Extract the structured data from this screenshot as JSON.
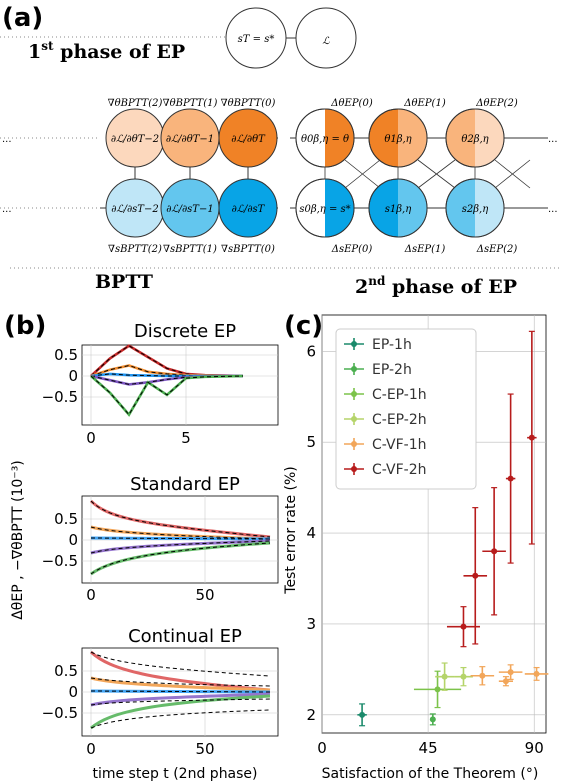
{
  "panel_a": {
    "label": "(a)",
    "first_phase": "1st phase of EP",
    "first_phase_sup": "st",
    "first_phase_num": "1",
    "first_phase_rest": " phase of EP",
    "top_nodes": [
      "sT = s*",
      "ℒ"
    ],
    "bptt_label": "BPTT",
    "second_phase_num": "2",
    "second_phase_sup": "nd",
    "second_phase_rest": " phase of EP",
    "grad_theta_bptt": [
      "∇θBPTT(2)",
      "∇θBPTT(1)",
      "∇θBPTT(0)"
    ],
    "grad_s_bptt": [
      "∇sBPTT(2)",
      "∇sBPTT(1)",
      "∇sBPTT(0)"
    ],
    "delta_theta_ep": [
      "ΔθEP(0)",
      "ΔθEP(1)",
      "ΔθEP(2)"
    ],
    "delta_s_ep": [
      "ΔsEP(0)",
      "ΔsEP(1)",
      "ΔsEP(2)"
    ],
    "theta_nodes": [
      "∂ℒ/∂θT−2",
      "∂ℒ/∂θT−1",
      "∂ℒ/∂θT"
    ],
    "s_nodes": [
      "∂ℒ/∂sT−2",
      "∂ℒ/∂sT−1",
      "∂ℒ/∂sT"
    ],
    "ep_theta_nodes": [
      "θ0β,η = θ",
      "θ1β,η",
      "θ2β,η"
    ],
    "ep_s_nodes": [
      "s0β,η = s*",
      "s1β,η",
      "s2β,η"
    ],
    "ellipsis": "..."
  },
  "panel_b": {
    "label": "(b)",
    "ylabel": "ΔθEP , −∇θBPTT (10⁻³)",
    "xlabel": "time step t (2nd phase)",
    "subplots": [
      {
        "title": "Discrete EP",
        "yticks": [
          "0.5",
          "0",
          "−0.5"
        ],
        "xticks": [
          "0",
          "5"
        ],
        "series": [
          {
            "color": "#c62828",
            "y": [
              0,
              0.42,
              0.72,
              0.45,
              0.18,
              0.05,
              0.02,
              0.01,
              0
            ]
          },
          {
            "color": "#ef8c2f",
            "y": [
              0,
              0.15,
              0.25,
              0.1,
              0.05,
              0.02,
              0.01,
              0,
              0
            ]
          },
          {
            "color": "#2196f3",
            "y": [
              0,
              0.05,
              0.02,
              0.01,
              0,
              0,
              0,
              0,
              0
            ]
          },
          {
            "color": "#7e57c2",
            "y": [
              0,
              -0.1,
              -0.2,
              -0.15,
              -0.08,
              -0.03,
              -0.01,
              0,
              0
            ]
          },
          {
            "color": "#4caf50",
            "y": [
              0,
              -0.4,
              -0.92,
              -0.15,
              -0.45,
              -0.05,
              -0.02,
              -0.01,
              0
            ]
          }
        ]
      },
      {
        "title": "Standard EP",
        "yticks": [
          "0.5",
          "0",
          "−0.5"
        ],
        "xticks": [
          "0",
          "50"
        ]
      },
      {
        "title": "Continual EP",
        "yticks": [
          "0.5",
          "0",
          "−0.5"
        ],
        "xticks": [
          "0",
          "50"
        ]
      }
    ]
  },
  "panel_c": {
    "label": "(c)",
    "ylabel": "Test error rate (%)",
    "xlabel": "Satisfaction of the Theorem (°)",
    "xticks": [
      "0",
      "45",
      "90"
    ],
    "yticks": [
      "2",
      "3",
      "4",
      "5",
      "6"
    ],
    "legend": [
      {
        "name": "EP-1h",
        "color": "#1b8a6b"
      },
      {
        "name": "EP-2h",
        "color": "#4caf50"
      },
      {
        "name": "C-EP-1h",
        "color": "#7cc34a"
      },
      {
        "name": "C-EP-2h",
        "color": "#b5d46a"
      },
      {
        "name": "C-VF-1h",
        "color": "#f2a65a"
      },
      {
        "name": "C-VF-2h",
        "color": "#b71c1c"
      }
    ],
    "chart_data": {
      "type": "scatter",
      "xlim": [
        0,
        95
      ],
      "ylim": [
        1.8,
        6.4
      ],
      "series": [
        {
          "name": "EP-1h",
          "color": "#1b8a6b",
          "points": [
            {
              "x": 17,
              "y": 2.0,
              "xerr": 2,
              "yerr": 0.12
            }
          ]
        },
        {
          "name": "EP-2h",
          "color": "#4caf50",
          "points": [
            {
              "x": 47,
              "y": 1.95,
              "xerr": 1,
              "yerr": 0.06
            }
          ]
        },
        {
          "name": "C-EP-1h",
          "color": "#7cc34a",
          "points": [
            {
              "x": 49,
              "y": 2.28,
              "xerr": 10,
              "yerr": 0.2
            }
          ]
        },
        {
          "name": "C-EP-2h",
          "color": "#b5d46a",
          "points": [
            {
              "x": 52,
              "y": 2.42,
              "xerr": 4,
              "yerr": 0.15
            },
            {
              "x": 60,
              "y": 2.42,
              "xerr": 4,
              "yerr": 0.1
            }
          ]
        },
        {
          "name": "C-VF-1h",
          "color": "#f2a65a",
          "points": [
            {
              "x": 68,
              "y": 2.43,
              "xerr": 5,
              "yerr": 0.1
            },
            {
              "x": 78,
              "y": 2.37,
              "xerr": 3,
              "yerr": 0.05
            },
            {
              "x": 80,
              "y": 2.47,
              "xerr": 5,
              "yerr": 0.08
            },
            {
              "x": 91,
              "y": 2.45,
              "xerr": 5,
              "yerr": 0.07
            }
          ]
        },
        {
          "name": "C-VF-2h",
          "color": "#b71c1c",
          "points": [
            {
              "x": 60,
              "y": 2.97,
              "xerr": 7,
              "yerr": 0.22
            },
            {
              "x": 65,
              "y": 3.53,
              "xerr": 5,
              "yerr": 0.75
            },
            {
              "x": 73,
              "y": 3.8,
              "xerr": 5,
              "yerr": 0.7
            },
            {
              "x": 80,
              "y": 4.6,
              "xerr": 2,
              "yerr": 0.93
            },
            {
              "x": 89,
              "y": 5.05,
              "xerr": 2,
              "yerr": 1.17
            }
          ]
        }
      ]
    }
  }
}
